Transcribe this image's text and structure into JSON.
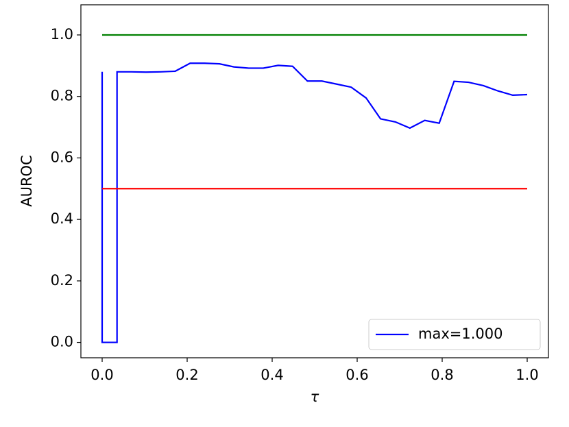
{
  "chart_data": {
    "type": "line",
    "xlabel": "τ",
    "ylabel": "AUROC",
    "xlim": [
      -0.05,
      1.05
    ],
    "ylim": [
      -0.05,
      1.098
    ],
    "xticks": [
      {
        "value": 0,
        "label": "0.0"
      },
      {
        "value": 0.2,
        "label": "0.2"
      },
      {
        "value": 0.4,
        "label": "0.4"
      },
      {
        "value": 0.6,
        "label": "0.6"
      },
      {
        "value": 0.8,
        "label": "0.8"
      },
      {
        "value": 1,
        "label": "1.0"
      }
    ],
    "yticks": [
      {
        "value": 0,
        "label": "0.0"
      },
      {
        "value": 0.2,
        "label": "0.2"
      },
      {
        "value": 0.4,
        "label": "0.4"
      },
      {
        "value": 0.6,
        "label": "0.6"
      },
      {
        "value": 0.8,
        "label": "0.8"
      },
      {
        "value": 1,
        "label": "1.0"
      }
    ],
    "legend": "lower right",
    "series": [
      {
        "name": "max=1.000",
        "color": "#0000ff",
        "x": [
          0,
          0,
          0.035,
          0.035,
          0.069,
          0.103,
          0.138,
          0.172,
          0.207,
          0.241,
          0.276,
          0.31,
          0.345,
          0.379,
          0.414,
          0.448,
          0.483,
          0.517,
          0.552,
          0.586,
          0.621,
          0.655,
          0.69,
          0.724,
          0.759,
          0.793,
          0.828,
          0.862,
          0.897,
          0.931,
          0.966,
          1.0
        ],
        "values": [
          0.88,
          0,
          0,
          0.88,
          0.88,
          0.879,
          0.88,
          0.882,
          0.908,
          0.908,
          0.906,
          0.896,
          0.892,
          0.892,
          0.901,
          0.898,
          0.85,
          0.85,
          0.84,
          0.83,
          0.795,
          0.727,
          0.717,
          0.697,
          0.722,
          0.713,
          0.849,
          0.846,
          0.835,
          0.818,
          0.804,
          0.806
        ]
      },
      {
        "color": "#008000",
        "x": [
          0,
          1
        ],
        "values": [
          1,
          1
        ]
      },
      {
        "color": "#ff0000",
        "x": [
          0,
          1
        ],
        "values": [
          0.5,
          0.5
        ]
      }
    ]
  }
}
